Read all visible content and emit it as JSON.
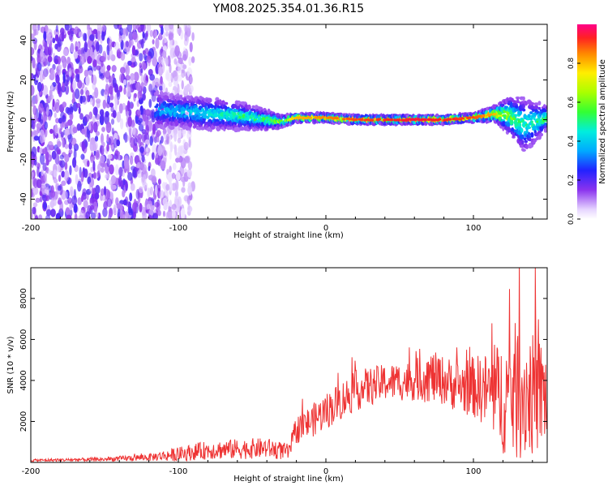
{
  "title": "YM08.2025.354.01.36.R15",
  "colors": {
    "snr_line": "#ee3333",
    "spec_low": "#9a66ee",
    "spec_mid": "#3344ff",
    "background": "#ffffff"
  },
  "chart_data": [
    {
      "type": "heatmap",
      "title": "YM08.2025.354.01.36.R15",
      "xlabel": "Height of straight line (km)",
      "ylabel": "Frequency (Hz)",
      "xlim": [
        -200,
        150
      ],
      "ylim": [
        -50,
        48
      ],
      "xticks": [
        -200,
        -100,
        0,
        100
      ],
      "yticks": [
        -40,
        -20,
        0,
        20,
        40
      ],
      "colorbar": {
        "label": "Normalized spectral amplitude",
        "range": [
          0.0,
          1.0
        ],
        "ticks": [
          "0.0",
          "0.2",
          "0.4",
          "0.6",
          "0.8"
        ],
        "tick_values": [
          0.0,
          0.2,
          0.4,
          0.6,
          0.8
        ]
      },
      "ridge": {
        "x": [
          -115,
          -100,
          -80,
          -60,
          -40,
          -30,
          -20,
          0,
          20,
          40,
          60,
          80,
          100,
          115,
          125,
          135,
          150
        ],
        "center_hz": [
          5,
          4,
          3,
          2,
          0,
          -1,
          1,
          1,
          0,
          0,
          0,
          0,
          1,
          3,
          2,
          -3,
          1
        ],
        "halfwidth_hz": [
          9,
          8,
          8,
          7,
          5,
          3,
          2,
          2,
          2,
          2,
          2,
          2,
          2,
          4,
          10,
          14,
          6
        ],
        "peak_amplitude": [
          0.35,
          0.4,
          0.45,
          0.5,
          0.55,
          0.7,
          0.8,
          0.85,
          0.9,
          0.92,
          0.95,
          0.93,
          0.9,
          0.8,
          0.6,
          0.5,
          0.55
        ]
      },
      "noise_region": {
        "x_range": [
          -200,
          -110
        ],
        "y_range": [
          -50,
          48
        ]
      }
    },
    {
      "type": "line",
      "xlabel": "Height of straight line (km)",
      "ylabel": "SNR (10 * v/v)",
      "xlim": [
        -200,
        150
      ],
      "ylim": [
        0,
        9500
      ],
      "xticks": [
        -200,
        -100,
        0,
        100
      ],
      "yticks": [
        2000,
        4000,
        6000,
        8000
      ],
      "series": [
        {
          "name": "SNR",
          "envelope": {
            "x": [
              -200,
              -150,
              -120,
              -100,
              -80,
              -60,
              -40,
              -25,
              -20,
              -10,
              0,
              20,
              40,
              60,
              70,
              80,
              90,
              100,
              110,
              120,
              130,
              140,
              150
            ],
            "mean": [
              100,
              150,
              250,
              400,
              600,
              650,
              700,
              500,
              1600,
              2000,
              2500,
              3500,
              3900,
              4000,
              4200,
              4000,
              3700,
              3700,
              3500,
              3200,
              3500,
              3300,
              3300
            ],
            "amplitude": [
              60,
              100,
              180,
              350,
              450,
              500,
              500,
              400,
              700,
              800,
              900,
              1000,
              900,
              1000,
              1300,
              1200,
              1300,
              1500,
              1900,
              2800,
              3500,
              3000,
              2600
            ]
          }
        }
      ]
    }
  ]
}
